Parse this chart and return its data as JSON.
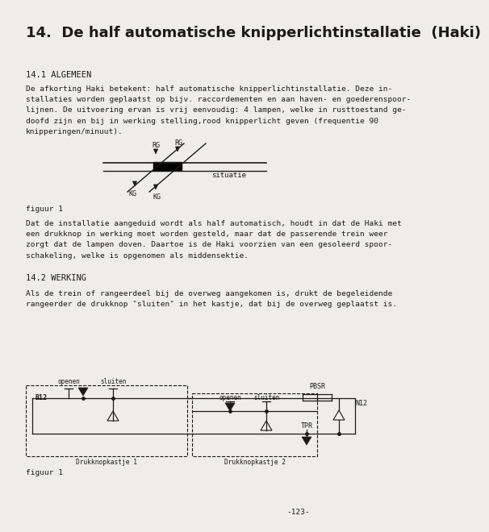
{
  "title": "14.  De half automatische knipperlichtinstallatie  (Haki)",
  "section1_header": "14.1 ALGEMEEN",
  "section1_text": "De afkorting Haki betekent: half automatische knipperlichtinstallatie. Deze in-\nstallaties worden geplaatst op bijv. raccordementen en aan haven- en goederenspoor-\nlijnen. De uitvoering ervan is vrij eenvoudig: 4 lampen, welke in rusttoestand ge-\ndoofd zijn en bij in werking stelling,rood knipperlicht geven (frequentie 90\nknipperingen/minuut).",
  "figuur1_label": "figuur 1",
  "section2_para": "Dat de installatie aangeduid wordt als half automatisch, houdt in dat de Haki met\neen drukknop in werking moet worden gesteld, maar dat de passerende trein weer\nzorgt dat de lampen doven. Daartoe is de Haki voorzien van een gesoleerd spoor-\nschakeling, welke is opgenomen als middensektie.",
  "section2_header": "14.2 WERKING",
  "section2_text": "Als de trein of rangeerdeel bij de overweg aangekomen is, drukt de begeleidende\nrangeerder de drukknop \"sluiten\" in het kastje, dat bij de overweg geplaatst is.",
  "figuur2_label": "figuur 1",
  "page_number": "-123-",
  "bg_color": "#f0ede8",
  "text_color": "#1a1a1a",
  "font_size_title": 13,
  "font_size_body": 6.8,
  "font_size_section": 7.5,
  "font_size_small": 6.0
}
